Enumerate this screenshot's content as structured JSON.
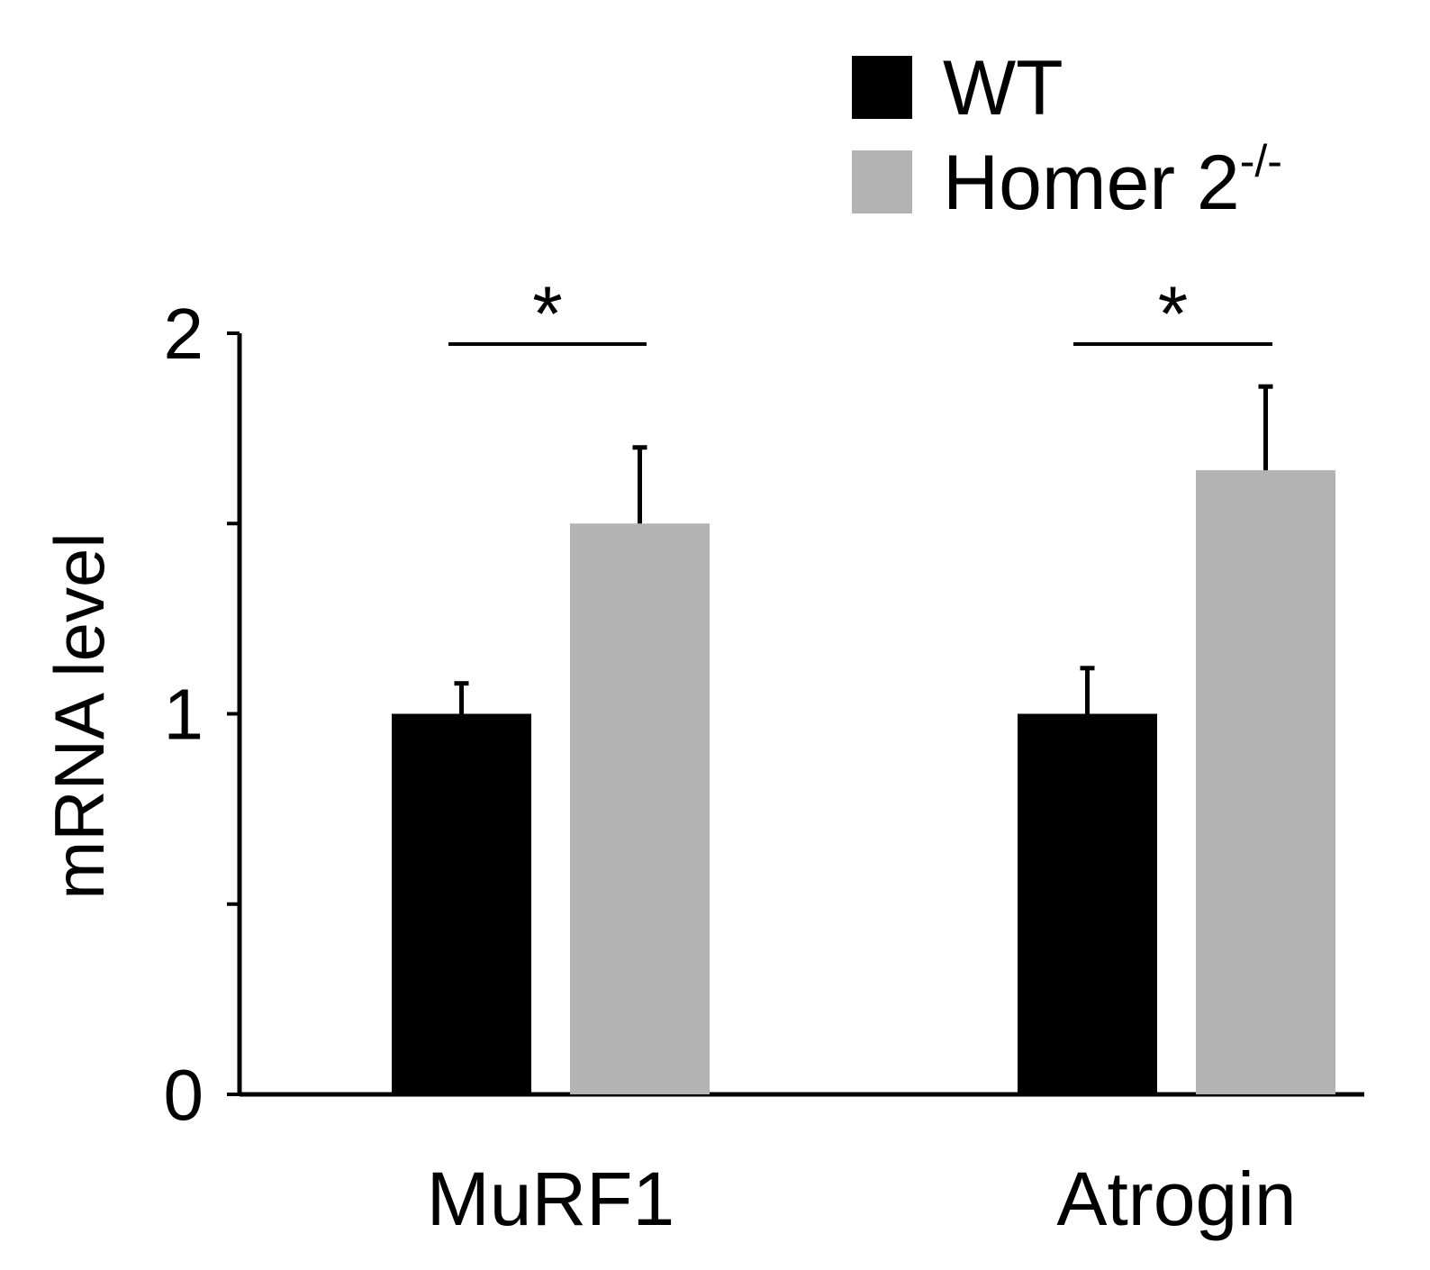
{
  "chart_data": {
    "type": "bar",
    "title": "",
    "xlabel": "",
    "ylabel": "mRNA level",
    "ylim": [
      0,
      2
    ],
    "yticks": [
      0,
      0.5,
      1,
      1.5,
      2
    ],
    "ytick_labels": [
      "0",
      "",
      "1",
      "",
      "2"
    ],
    "categories": [
      "MuRF1",
      "Atrogin"
    ],
    "series": [
      {
        "name": "WT",
        "name_superscript": "",
        "color": "#000000",
        "values": [
          1.0,
          1.0
        ],
        "errors": [
          0.08,
          0.12
        ]
      },
      {
        "name": "Homer 2",
        "name_superscript": "-/-",
        "color": "#b3b3b3",
        "values": [
          1.5,
          1.64
        ],
        "errors": [
          0.2,
          0.22
        ]
      }
    ],
    "significance": [
      {
        "category": "MuRF1",
        "label": "*"
      },
      {
        "category": "Atrogin",
        "label": "*"
      }
    ],
    "legend": "top-right",
    "grid": false
  }
}
